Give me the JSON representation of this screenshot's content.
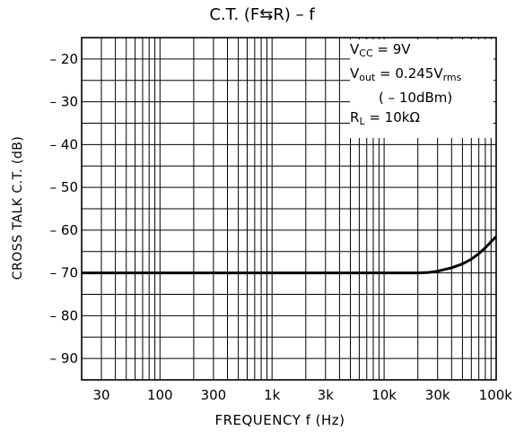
{
  "chart_data": {
    "type": "line",
    "title": "C.T. (F⇆R)  –  f",
    "xlabel": "FREQUENCY   f   (Hz)",
    "ylabel": "CROSS TALK  C.T.  (dB)",
    "x_scale": "log",
    "xlim": [
      20,
      100000
    ],
    "ylim": [
      -95,
      -15
    ],
    "grid": true,
    "x_ticks": [
      {
        "value": 30,
        "label": "30"
      },
      {
        "value": 100,
        "label": "100"
      },
      {
        "value": 300,
        "label": "300"
      },
      {
        "value": 1000,
        "label": "1k"
      },
      {
        "value": 3000,
        "label": "3k"
      },
      {
        "value": 10000,
        "label": "10k"
      },
      {
        "value": 30000,
        "label": "30k"
      },
      {
        "value": 100000,
        "label": "100k"
      }
    ],
    "y_ticks": [
      {
        "value": -20,
        "label": "– 20"
      },
      {
        "value": -30,
        "label": "– 30"
      },
      {
        "value": -40,
        "label": "– 40"
      },
      {
        "value": -50,
        "label": "– 50"
      },
      {
        "value": -60,
        "label": "– 60"
      },
      {
        "value": -70,
        "label": "– 70"
      },
      {
        "value": -80,
        "label": "– 80"
      },
      {
        "value": -90,
        "label": "– 90"
      }
    ],
    "series": [
      {
        "x": [
          20,
          100,
          1000,
          10000,
          20000,
          25000,
          30000,
          40000,
          50000,
          60000,
          70000,
          80000,
          90000,
          100000
        ],
        "y": [
          -70,
          -70,
          -70,
          -70,
          -70,
          -69.9,
          -69.6,
          -68.8,
          -67.9,
          -66.8,
          -65.5,
          -64.1,
          -62.7,
          -61.5
        ]
      }
    ],
    "legend": "top-right",
    "conditions": {
      "vcc": {
        "main": "V",
        "sub": "CC",
        "rest": " = 9V"
      },
      "vout": {
        "main": "V",
        "sub": "out",
        "rest": " = 0.245V",
        "sub2": "rms"
      },
      "dbm": "( – 10dBm)",
      "rl": {
        "main": "R",
        "sub": "L",
        "rest": " = 10kΩ"
      }
    }
  }
}
